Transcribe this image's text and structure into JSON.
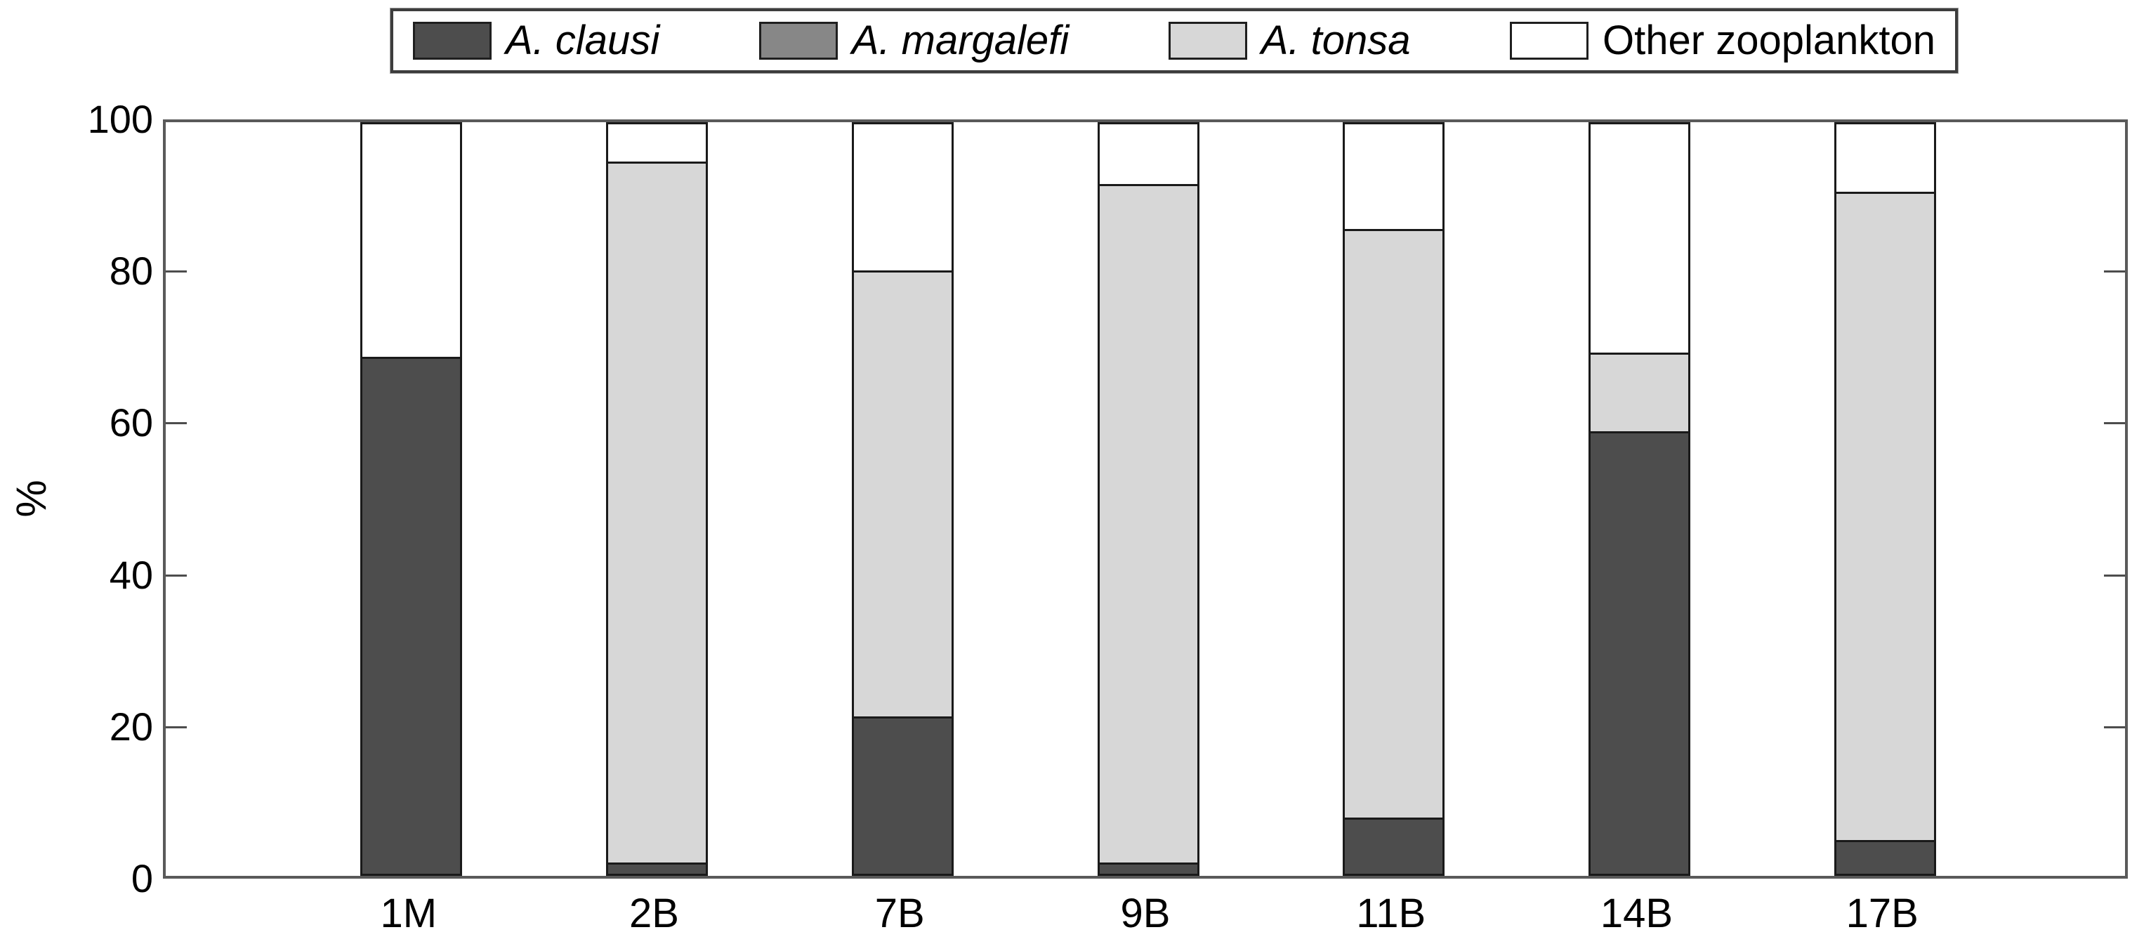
{
  "y_axis": {
    "title": "%",
    "ticks": [
      0,
      20,
      40,
      60,
      80,
      100
    ],
    "range": [
      0,
      100
    ]
  },
  "legend": {
    "entries": [
      {
        "label": "A. clausi",
        "color": "#4d4d4d",
        "italic": true
      },
      {
        "label": "A. margalefi",
        "color": "#878787",
        "italic": true
      },
      {
        "label": "A. tonsa",
        "color": "#d7d7d7",
        "italic": true
      },
      {
        "label": "Other zooplankton",
        "color": "#ffffff",
        "italic": false
      }
    ]
  },
  "chart_data": {
    "type": "bar",
    "stacked": true,
    "title": "",
    "xlabel": "",
    "ylabel": "%",
    "ylim": [
      0,
      100
    ],
    "grid": false,
    "legend_position": "top-center",
    "categories": [
      "1M",
      "2B",
      "7B",
      "9B",
      "11B",
      "14B",
      "17B"
    ],
    "series": [
      {
        "name": "A. clausi",
        "color": "#4d4d4d",
        "values": [
          69.0,
          1.5,
          21.0,
          1.5,
          7.5,
          59.0,
          4.5
        ]
      },
      {
        "name": "A. margalefi",
        "color": "#878787",
        "values": [
          0,
          0,
          0,
          0,
          0,
          0,
          0
        ]
      },
      {
        "name": "A. tonsa",
        "color": "#d7d7d7",
        "values": [
          0,
          93.5,
          59.5,
          90.5,
          78.5,
          10.5,
          86.5
        ]
      },
      {
        "name": "Other zooplankton",
        "color": "#ffffff",
        "values": [
          31.0,
          5.0,
          19.5,
          8.0,
          14.0,
          30.5,
          9.0
        ]
      }
    ]
  },
  "style": {
    "edge_color": "#1a1a1a",
    "axis_color": "#5a5a5a",
    "background": "#ffffff"
  }
}
